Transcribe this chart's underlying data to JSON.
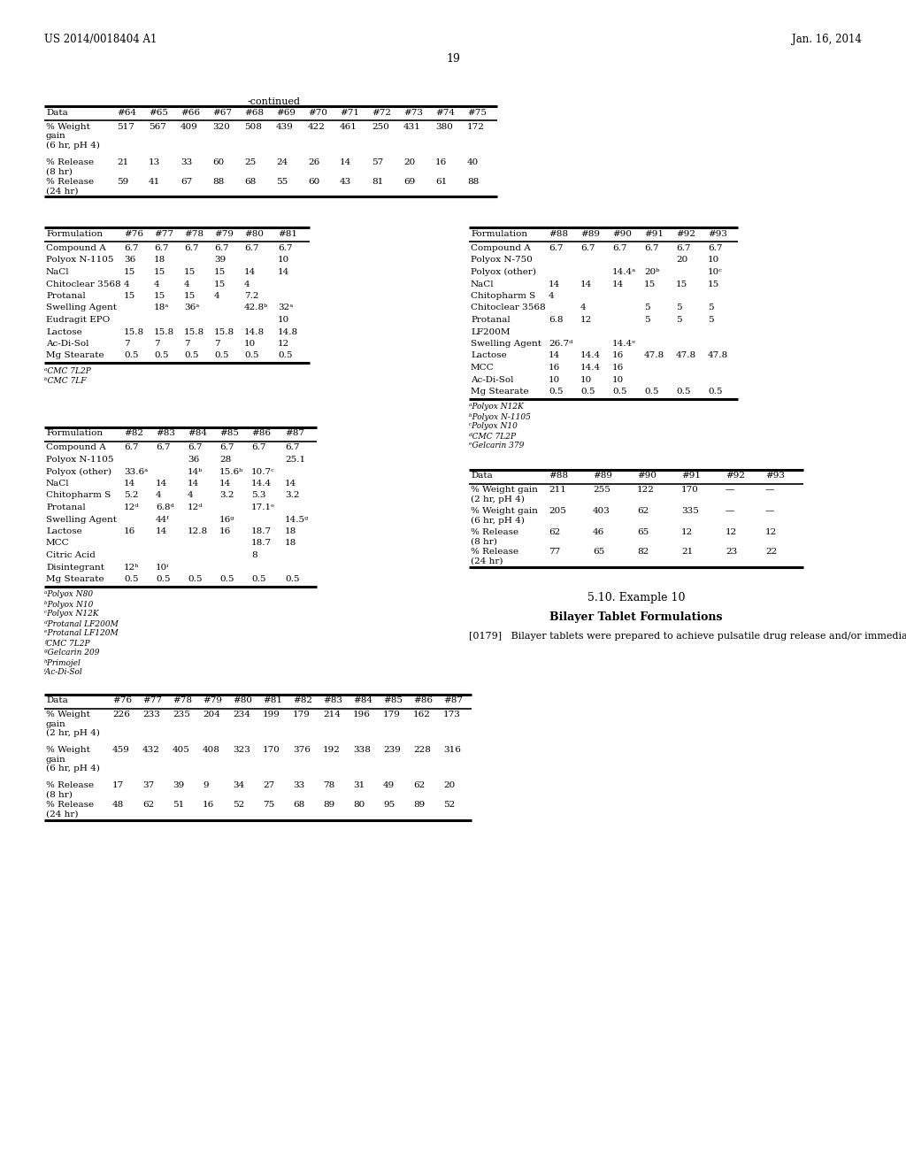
{
  "page_number": "19",
  "patent_left": "US 2014/0018404 A1",
  "patent_right": "Jan. 16, 2014",
  "continued_label": "-continued",
  "table1_headers": [
    "Data",
    "#64",
    "#65",
    "#66",
    "#67",
    "#68",
    "#69",
    "#70",
    "#71",
    "#72",
    "#73",
    "#74",
    "#75"
  ],
  "table1_rows": [
    [
      "% Weight\ngain\n(6 hr, pH 4)",
      "517",
      "567",
      "409",
      "320",
      "508",
      "439",
      "422",
      "461",
      "250",
      "431",
      "380",
      "172"
    ],
    [
      "% Release\n(8 hr)",
      "21",
      "13",
      "33",
      "60",
      "25",
      "24",
      "26",
      "14",
      "57",
      "20",
      "16",
      "40"
    ],
    [
      "% Release\n(24 hr)",
      "59",
      "41",
      "67",
      "88",
      "68",
      "55",
      "60",
      "43",
      "81",
      "69",
      "61",
      "88"
    ]
  ],
  "table2_headers": [
    "Formulation",
    "#76",
    "#77",
    "#78",
    "#79",
    "#80",
    "#81"
  ],
  "table2_rows": [
    [
      "Compound A",
      "6.7",
      "6.7",
      "6.7",
      "6.7",
      "6.7",
      "6.7"
    ],
    [
      "Polyox N-1105",
      "36",
      "18",
      "",
      "39",
      "",
      "10"
    ],
    [
      "NaCl",
      "15",
      "15",
      "15",
      "15",
      "14",
      "14"
    ],
    [
      "Chitoclear 3568",
      "4",
      "4",
      "4",
      "15",
      "4",
      ""
    ],
    [
      "Protanal",
      "15",
      "15",
      "15",
      "4",
      "7.2",
      ""
    ],
    [
      "Swelling Agent",
      "",
      "18ᵃ",
      "36ᵃ",
      "",
      "42.8ᵇ",
      "32ᵃ"
    ],
    [
      "Eudragit EPO",
      "",
      "",
      "",
      "",
      "",
      "10"
    ],
    [
      "Lactose",
      "15.8",
      "15.8",
      "15.8",
      "15.8",
      "14.8",
      "14.8"
    ],
    [
      "Ac-Di-Sol",
      "7",
      "7",
      "7",
      "7",
      "10",
      "12"
    ],
    [
      "Mg Stearate",
      "0.5",
      "0.5",
      "0.5",
      "0.5",
      "0.5",
      "0.5"
    ]
  ],
  "table2_footnotes": [
    "ᵃCMC 7L2P",
    "ᵇCMC 7LF"
  ],
  "table3_headers": [
    "Formulation",
    "#88",
    "#89",
    "#90",
    "#91",
    "#92",
    "#93"
  ],
  "table3_rows": [
    [
      "Compound A",
      "6.7",
      "6.7",
      "6.7",
      "6.7",
      "6.7",
      "6.7"
    ],
    [
      "Polyox N-750",
      "",
      "",
      "",
      "",
      "20",
      "10"
    ],
    [
      "Polyox (other)",
      "",
      "",
      "14.4ᵃ",
      "20ᵇ",
      "",
      "10ᶜ"
    ],
    [
      "NaCl",
      "14",
      "14",
      "14",
      "15",
      "15",
      "15"
    ],
    [
      "Chitopharm S",
      "4",
      "",
      "",
      "",
      "",
      ""
    ],
    [
      "Chitoclear 3568",
      "",
      "4",
      "",
      "5",
      "5",
      "5"
    ],
    [
      "Protanal",
      "6.8",
      "12",
      "",
      "5",
      "5",
      "5"
    ],
    [
      "LF200M",
      "",
      "",
      "",
      "",
      "",
      ""
    ],
    [
      "Swelling Agent",
      "26.7ᵈ",
      "",
      "14.4ᵉ",
      "",
      "",
      ""
    ],
    [
      "Lactose",
      "14",
      "14.4",
      "16",
      "47.8",
      "47.8",
      "47.8"
    ],
    [
      "MCC",
      "16",
      "14.4",
      "16",
      "",
      "",
      ""
    ],
    [
      "Ac-Di-Sol",
      "10",
      "10",
      "10",
      "",
      "",
      ""
    ],
    [
      "Mg Stearate",
      "0.5",
      "0.5",
      "0.5",
      "0.5",
      "0.5",
      "0.5"
    ]
  ],
  "table3_footnotes": [
    "ᵃPolyox N12K",
    "ᵇPolyox N-1105",
    "ᶜPolyox N10",
    "ᵈCMC 7L2P",
    "ᵉGelcarin 379"
  ],
  "table4_headers": [
    "Formulation",
    "#82",
    "#83",
    "#84",
    "#85",
    "#86",
    "#87"
  ],
  "table4_rows": [
    [
      "Compound A",
      "6.7",
      "6.7",
      "6.7",
      "6.7",
      "6.7",
      "6.7"
    ],
    [
      "Polyox N-1105",
      "",
      "",
      "36",
      "28",
      "",
      "25.1"
    ],
    [
      "Polyox (other)",
      "33.6ᵃ",
      "",
      "14ᵇ",
      "15.6ᵇ",
      "10.7ᶜ",
      ""
    ],
    [
      "NaCl",
      "14",
      "14",
      "14",
      "14",
      "14.4",
      "14"
    ],
    [
      "Chitopharm S",
      "5.2",
      "4",
      "4",
      "3.2",
      "5.3",
      "3.2"
    ],
    [
      "Protanal",
      "12ᵈ",
      "6.8ᵈ",
      "12ᵈ",
      "",
      "17.1ᵉ",
      ""
    ],
    [
      "Swelling Agent",
      "",
      "44ᶠ",
      "",
      "16ᵍ",
      "",
      "14.5ᵍ"
    ],
    [
      "Lactose",
      "16",
      "14",
      "12.8",
      "16",
      "18.7",
      "18"
    ],
    [
      "MCC",
      "",
      "",
      "",
      "",
      "18.7",
      "18"
    ],
    [
      "Citric Acid",
      "",
      "",
      "",
      "",
      "8",
      ""
    ],
    [
      "Disintegrant",
      "12ʰ",
      "10ⁱ",
      "",
      "",
      "",
      ""
    ],
    [
      "Mg Stearate",
      "0.5",
      "0.5",
      "0.5",
      "0.5",
      "0.5",
      "0.5"
    ]
  ],
  "table4_footnotes": [
    "ᵃPolyox N80",
    "ᵇPolyox N10",
    "ᶜPolyox N12K",
    "ᵈProtanal LF200M",
    "ᵉProtanal LF120M",
    "ᶠCMC 7L2P",
    "ᵍGelcarin 209",
    "ʰPrimojel",
    "ⁱAc-Di-Sol"
  ],
  "table5_headers": [
    "Data",
    "#88",
    "#89",
    "#90",
    "#91",
    "#92",
    "#93"
  ],
  "table5_rows": [
    [
      "% Weight gain\n(2 hr, pH 4)",
      "211",
      "255",
      "122",
      "170",
      "—",
      "—"
    ],
    [
      "% Weight gain\n(6 hr, pH 4)",
      "205",
      "403",
      "62",
      "335",
      "—",
      "—"
    ],
    [
      "% Release\n(8 hr)",
      "62",
      "46",
      "65",
      "12",
      "12",
      "12"
    ],
    [
      "% Release\n(24 hr)",
      "77",
      "65",
      "82",
      "21",
      "23",
      "22"
    ]
  ],
  "section_title": "5.10. Example 10",
  "section_subtitle": "Bilayer Tablet Formulations",
  "paragraph_ref": "[0179]",
  "paragraph_text": "Bilayer tablets were prepared to achieve pulsatile drug release and/or immediate release followed by controlled",
  "table6_headers": [
    "Data",
    "#76",
    "#77",
    "#78",
    "#79",
    "#80",
    "#81",
    "#82",
    "#83",
    "#84",
    "#85",
    "#86",
    "#87"
  ],
  "table6_rows": [
    [
      "% Weight\ngain\n(2 hr, pH 4)",
      "226",
      "233",
      "235",
      "204",
      "234",
      "199",
      "179",
      "214",
      "196",
      "179",
      "162",
      "173"
    ],
    [
      "% Weight\ngain\n(6 hr, pH 4)",
      "459",
      "432",
      "405",
      "408",
      "323",
      "170",
      "376",
      "192",
      "338",
      "239",
      "228",
      "316"
    ],
    [
      "% Release\n(8 hr)",
      "17",
      "37",
      "39",
      "9",
      "34",
      "27",
      "33",
      "78",
      "31",
      "49",
      "62",
      "20"
    ],
    [
      "% Release\n(24 hr)",
      "48",
      "62",
      "51",
      "16",
      "52",
      "75",
      "68",
      "89",
      "80",
      "95",
      "89",
      "52"
    ]
  ]
}
